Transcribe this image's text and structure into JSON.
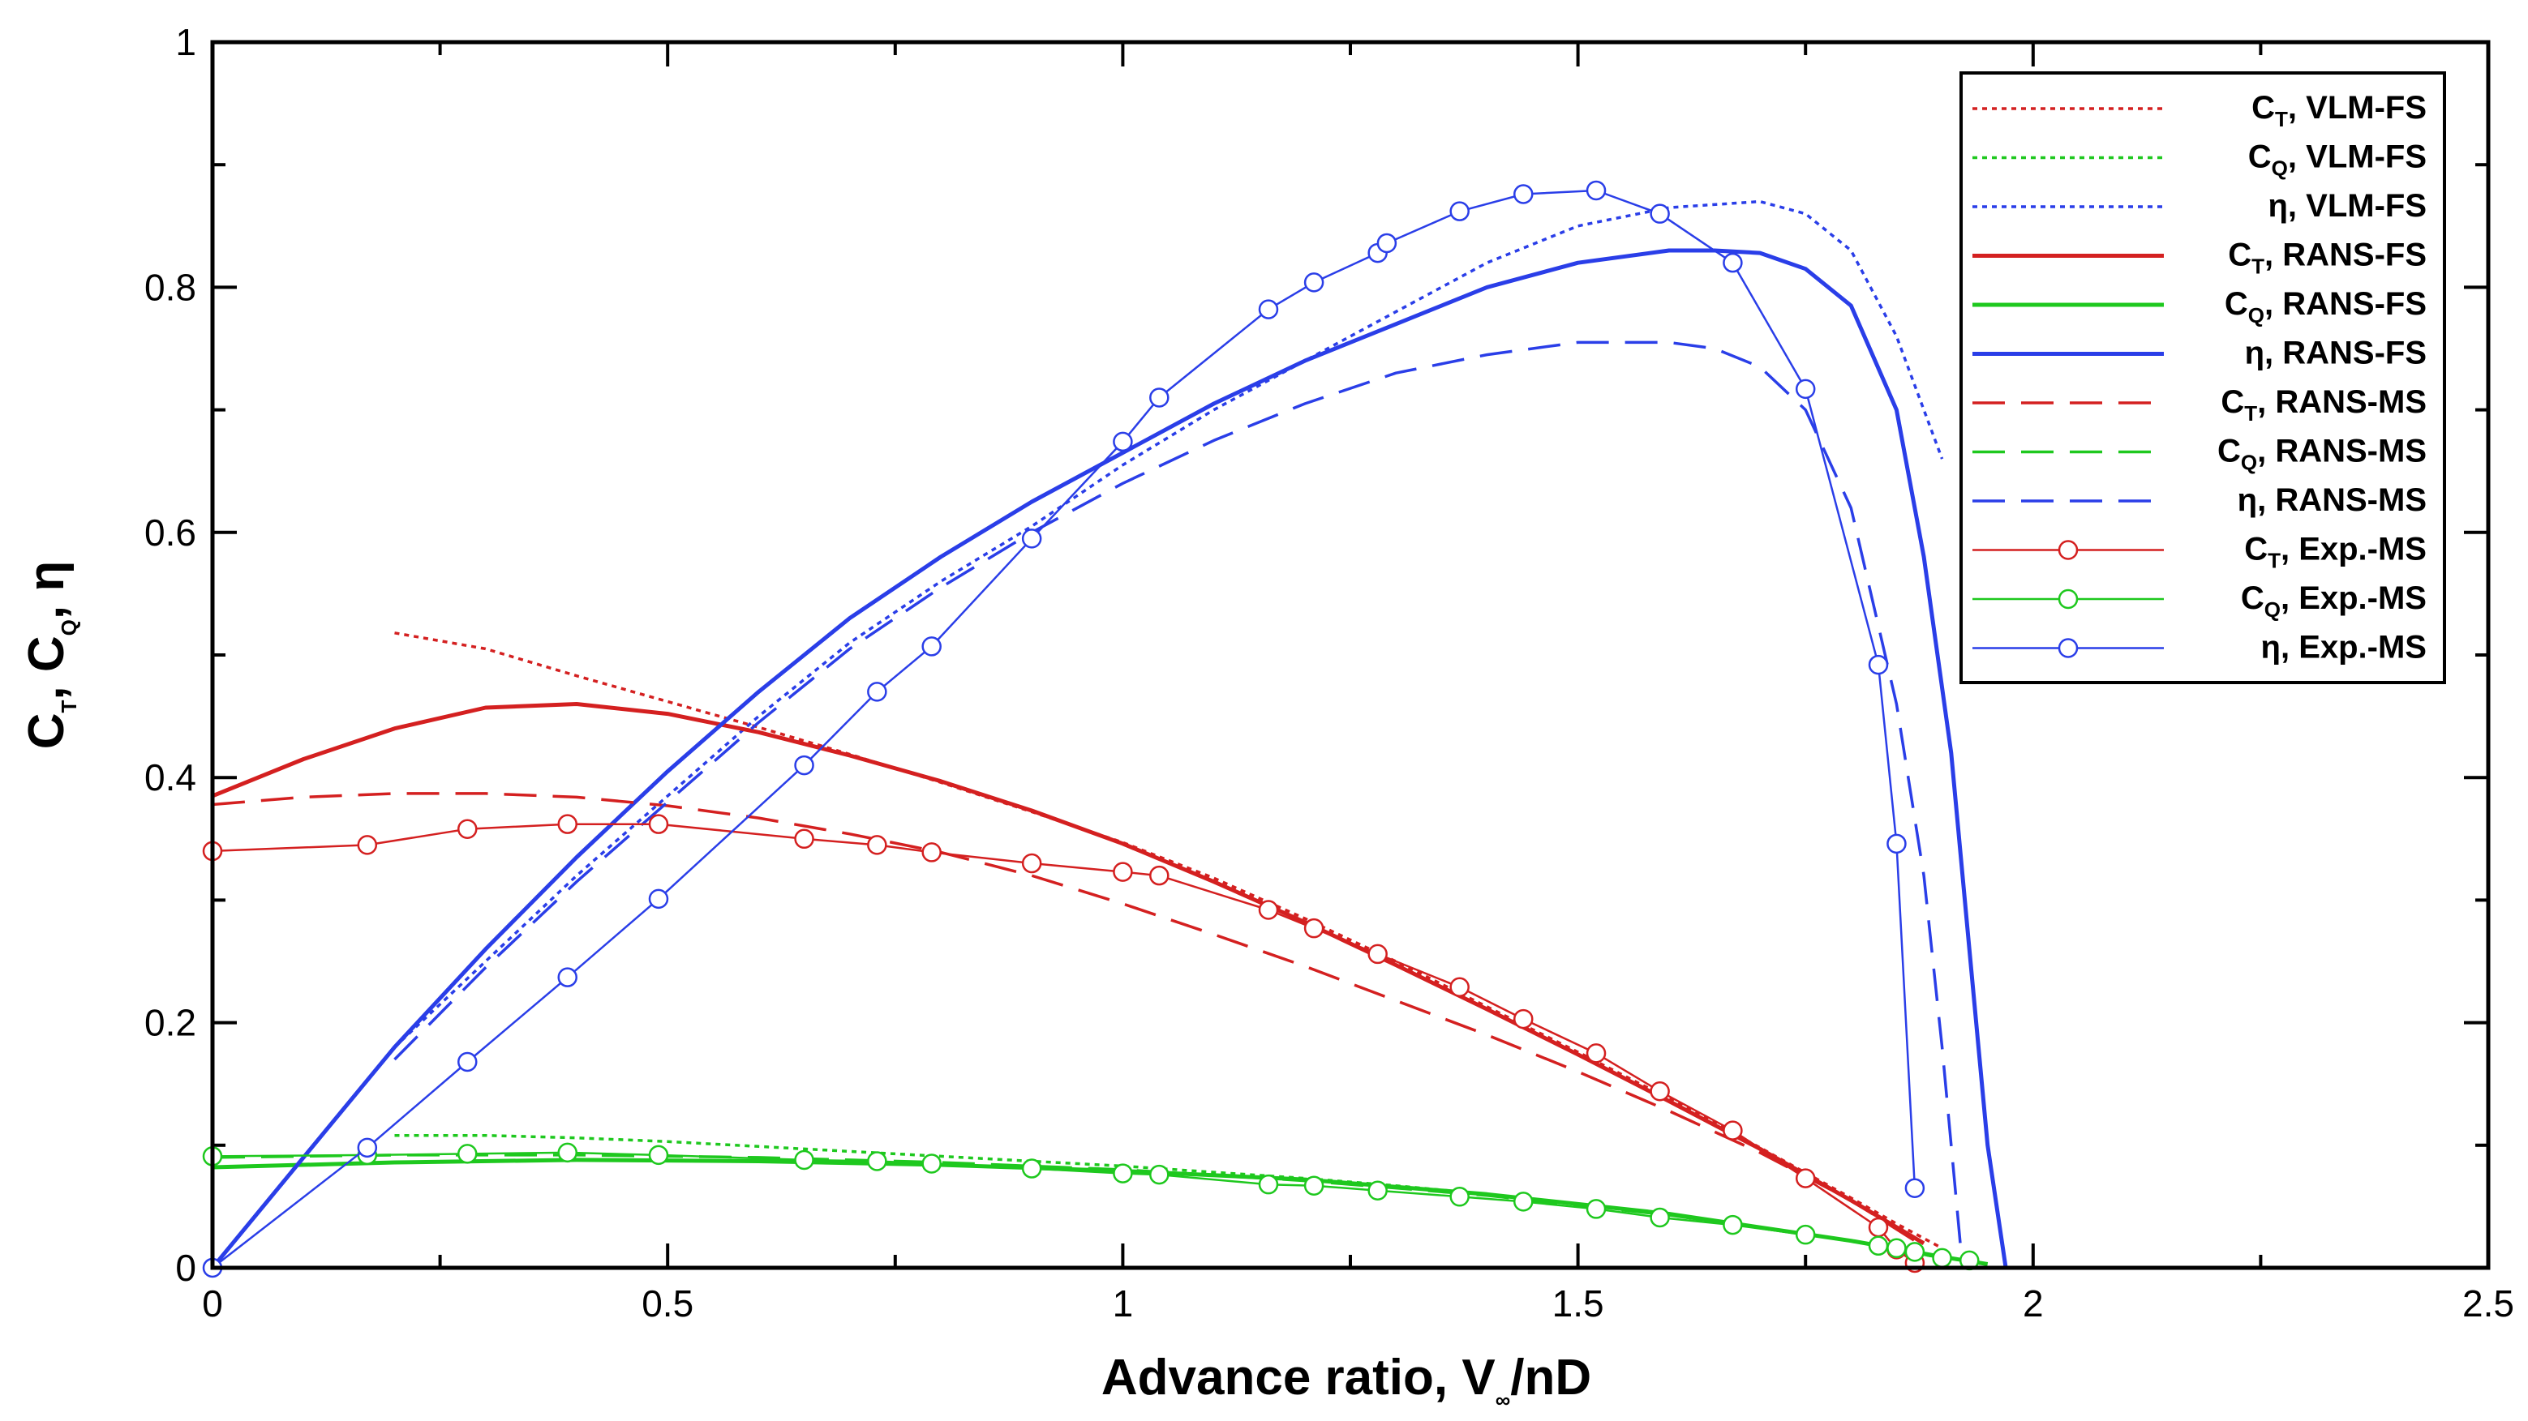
{
  "chart_data": {
    "type": "line",
    "title": "",
    "xlabel": "Advance ratio, V",
    "xlabel_sub": "∞",
    "xlabel_suffix": "/nD",
    "ylabel": "C",
    "ylabel_sub1": "T",
    "ylabel_sep1": ", C",
    "ylabel_sub2": "Q",
    "ylabel_sep2": ", η",
    "xlim": [
      0,
      2.5
    ],
    "ylim": [
      0,
      1
    ],
    "xticks": [
      "0",
      "0.5",
      "1",
      "1.5",
      "2",
      "2.5"
    ],
    "yticks": [
      "0",
      "0.2",
      "0.4",
      "0.6",
      "0.8",
      "1"
    ],
    "legend_position": "top-right",
    "colors": {
      "red": "#d42020",
      "green": "#1ec81e",
      "blue": "#2a3ee8"
    },
    "series": [
      {
        "name": "VLM-FS",
        "sym": "C",
        "sub": "T",
        "color": "red",
        "style": "dotted",
        "marker": false,
        "x": [
          0.2,
          0.3,
          0.4,
          0.5,
          0.6,
          0.7,
          0.8,
          0.9,
          1.0,
          1.1,
          1.2,
          1.3,
          1.4,
          1.5,
          1.6,
          1.7,
          1.8,
          1.85,
          1.9
        ],
        "y": [
          0.518,
          0.505,
          0.483,
          0.462,
          0.441,
          0.419,
          0.396,
          0.372,
          0.347,
          0.318,
          0.285,
          0.25,
          0.213,
          0.176,
          0.138,
          0.098,
          0.057,
          0.036,
          0.016
        ]
      },
      {
        "name": "VLM-FS",
        "sym": "C",
        "sub": "Q",
        "color": "green",
        "style": "dotted",
        "marker": false,
        "x": [
          0.2,
          0.3,
          0.4,
          0.5,
          0.6,
          0.7,
          0.8,
          0.9,
          1.0,
          1.1,
          1.2,
          1.3,
          1.4,
          1.5,
          1.6,
          1.7,
          1.8,
          1.9
        ],
        "y": [
          0.108,
          0.108,
          0.106,
          0.103,
          0.099,
          0.095,
          0.091,
          0.087,
          0.083,
          0.078,
          0.073,
          0.067,
          0.06,
          0.052,
          0.043,
          0.033,
          0.022,
          0.008
        ]
      },
      {
        "name": "VLM-FS",
        "sym": "η",
        "sub": "",
        "color": "blue",
        "style": "dotted",
        "marker": false,
        "x": [
          0.2,
          0.3,
          0.4,
          0.5,
          0.6,
          0.7,
          0.8,
          0.9,
          1.0,
          1.1,
          1.2,
          1.3,
          1.4,
          1.5,
          1.6,
          1.7,
          1.75,
          1.8,
          1.85,
          1.88,
          1.9
        ],
        "y": [
          0.18,
          0.25,
          0.32,
          0.385,
          0.45,
          0.51,
          0.56,
          0.605,
          0.655,
          0.7,
          0.74,
          0.78,
          0.82,
          0.85,
          0.865,
          0.87,
          0.86,
          0.83,
          0.76,
          0.7,
          0.66
        ]
      },
      {
        "name": "RANS-FS",
        "sym": "C",
        "sub": "T",
        "color": "red",
        "style": "solid",
        "marker": false,
        "x": [
          0.0,
          0.1,
          0.2,
          0.3,
          0.4,
          0.5,
          0.6,
          0.7,
          0.8,
          0.9,
          1.0,
          1.1,
          1.2,
          1.3,
          1.4,
          1.5,
          1.6,
          1.7,
          1.8,
          1.88
        ],
        "y": [
          0.385,
          0.415,
          0.44,
          0.457,
          0.46,
          0.452,
          0.437,
          0.418,
          0.397,
          0.373,
          0.346,
          0.315,
          0.282,
          0.247,
          0.211,
          0.174,
          0.136,
          0.097,
          0.055,
          0.02
        ]
      },
      {
        "name": "RANS-FS",
        "sym": "C",
        "sub": "Q",
        "color": "green",
        "style": "solid",
        "marker": false,
        "x": [
          0.0,
          0.2,
          0.4,
          0.6,
          0.8,
          1.0,
          1.2,
          1.4,
          1.6,
          1.8,
          1.9,
          1.95
        ],
        "y": [
          0.082,
          0.086,
          0.088,
          0.087,
          0.084,
          0.079,
          0.072,
          0.06,
          0.044,
          0.022,
          0.009,
          0.003
        ]
      },
      {
        "name": "RANS-FS",
        "sym": "η",
        "sub": "",
        "color": "blue",
        "style": "solid",
        "marker": false,
        "x": [
          0.0,
          0.1,
          0.2,
          0.3,
          0.4,
          0.5,
          0.6,
          0.7,
          0.8,
          0.9,
          1.0,
          1.1,
          1.2,
          1.3,
          1.4,
          1.5,
          1.6,
          1.65,
          1.7,
          1.75,
          1.8,
          1.85,
          1.88,
          1.91,
          1.93,
          1.95,
          1.97
        ],
        "y": [
          0.0,
          0.09,
          0.18,
          0.26,
          0.335,
          0.405,
          0.47,
          0.53,
          0.58,
          0.625,
          0.665,
          0.705,
          0.74,
          0.77,
          0.8,
          0.82,
          0.83,
          0.83,
          0.828,
          0.815,
          0.785,
          0.7,
          0.58,
          0.42,
          0.26,
          0.1,
          0.0
        ]
      },
      {
        "name": "RANS-MS",
        "sym": "C",
        "sub": "T",
        "color": "red",
        "style": "dashed",
        "marker": false,
        "x": [
          0.0,
          0.1,
          0.2,
          0.3,
          0.4,
          0.5,
          0.6,
          0.7,
          0.8,
          0.9,
          1.0,
          1.1,
          1.2,
          1.3,
          1.4,
          1.5,
          1.6,
          1.7,
          1.8,
          1.87
        ],
        "y": [
          0.378,
          0.384,
          0.387,
          0.387,
          0.384,
          0.377,
          0.367,
          0.354,
          0.339,
          0.32,
          0.297,
          0.272,
          0.246,
          0.218,
          0.19,
          0.16,
          0.128,
          0.094,
          0.055,
          0.022
        ]
      },
      {
        "name": "RANS-MS",
        "sym": "C",
        "sub": "Q",
        "color": "green",
        "style": "dashed",
        "marker": false,
        "x": [
          0.0,
          0.2,
          0.4,
          0.6,
          0.8,
          1.0,
          1.2,
          1.4,
          1.6,
          1.8,
          1.9
        ],
        "y": [
          0.09,
          0.092,
          0.092,
          0.09,
          0.086,
          0.08,
          0.071,
          0.059,
          0.043,
          0.022,
          0.008
        ]
      },
      {
        "name": "RANS-MS",
        "sym": "η",
        "sub": "",
        "color": "blue",
        "style": "dashed",
        "marker": false,
        "x": [
          0.2,
          0.3,
          0.4,
          0.5,
          0.6,
          0.7,
          0.8,
          0.9,
          1.0,
          1.1,
          1.2,
          1.3,
          1.4,
          1.5,
          1.6,
          1.65,
          1.7,
          1.75,
          1.8,
          1.85,
          1.88,
          1.9,
          1.92
        ],
        "y": [
          0.17,
          0.245,
          0.315,
          0.38,
          0.445,
          0.505,
          0.555,
          0.6,
          0.64,
          0.675,
          0.705,
          0.73,
          0.745,
          0.755,
          0.755,
          0.75,
          0.735,
          0.7,
          0.62,
          0.46,
          0.32,
          0.18,
          0.02
        ]
      },
      {
        "name": "Exp.-MS",
        "sym": "C",
        "sub": "T",
        "color": "red",
        "style": "solid",
        "marker": true,
        "x": [
          0.0,
          0.17,
          0.28,
          0.39,
          0.49,
          0.65,
          0.73,
          0.79,
          0.9,
          1.0,
          1.04,
          1.16,
          1.21,
          1.28,
          1.37,
          1.44,
          1.52,
          1.59,
          1.67,
          1.75,
          1.83,
          1.85,
          1.87
        ],
        "y": [
          0.34,
          0.345,
          0.358,
          0.362,
          0.362,
          0.35,
          0.345,
          0.339,
          0.33,
          0.323,
          0.32,
          0.292,
          0.277,
          0.256,
          0.229,
          0.203,
          0.175,
          0.144,
          0.112,
          0.073,
          0.033,
          0.015,
          0.004
        ]
      },
      {
        "name": "Exp.-MS",
        "sym": "C",
        "sub": "Q",
        "color": "green",
        "style": "solid",
        "marker": true,
        "x": [
          0.0,
          0.17,
          0.28,
          0.39,
          0.49,
          0.65,
          0.73,
          0.79,
          0.9,
          1.0,
          1.04,
          1.16,
          1.21,
          1.28,
          1.37,
          1.44,
          1.52,
          1.59,
          1.67,
          1.75,
          1.83,
          1.85,
          1.87,
          1.9,
          1.93
        ],
        "y": [
          0.091,
          0.092,
          0.093,
          0.094,
          0.092,
          0.088,
          0.087,
          0.085,
          0.081,
          0.077,
          0.076,
          0.068,
          0.067,
          0.063,
          0.058,
          0.054,
          0.048,
          0.041,
          0.035,
          0.027,
          0.018,
          0.016,
          0.013,
          0.008,
          0.006
        ]
      },
      {
        "name": "Exp.-MS",
        "sym": "η",
        "sub": "",
        "color": "blue",
        "style": "solid",
        "marker": true,
        "x": [
          0.0,
          0.17,
          0.28,
          0.39,
          0.49,
          0.65,
          0.73,
          0.79,
          0.9,
          1.0,
          1.04,
          1.16,
          1.21,
          1.28,
          1.29,
          1.37,
          1.44,
          1.52,
          1.59,
          1.67,
          1.75,
          1.83,
          1.85,
          1.87
        ],
        "y": [
          0.0,
          0.098,
          0.168,
          0.237,
          0.301,
          0.41,
          0.47,
          0.507,
          0.595,
          0.674,
          0.71,
          0.782,
          0.804,
          0.828,
          0.836,
          0.862,
          0.876,
          0.879,
          0.86,
          0.82,
          0.717,
          0.492,
          0.346,
          0.065
        ]
      }
    ]
  }
}
